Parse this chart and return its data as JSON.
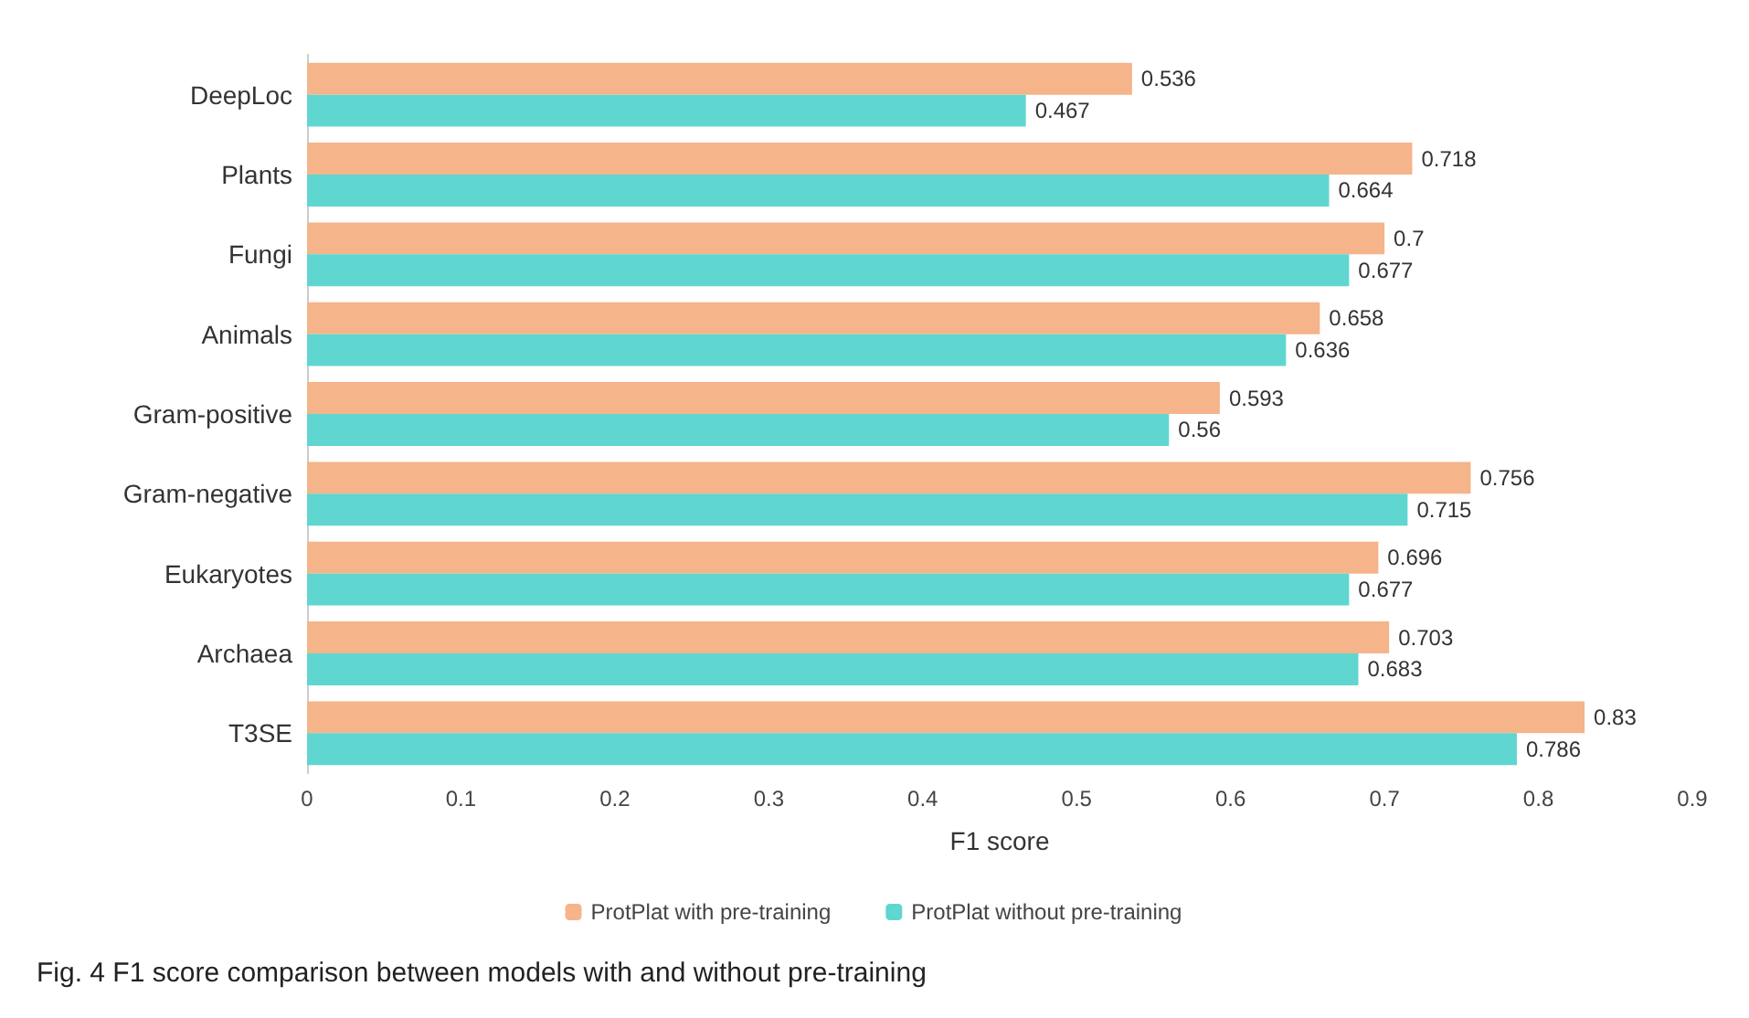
{
  "chart_data": {
    "type": "bar",
    "orientation": "horizontal",
    "xlabel": "F1 score",
    "categories": [
      "DeepLoc",
      "Plants",
      "Fungi",
      "Animals",
      "Gram-positive",
      "Gram-negative",
      "Eukaryotes",
      "Archaea",
      "T3SE"
    ],
    "series": [
      {
        "name": "ProtPlat with pre-training",
        "color": "#f5b48a",
        "values": [
          0.536,
          0.718,
          0.7,
          0.658,
          0.593,
          0.756,
          0.696,
          0.703,
          0.83
        ]
      },
      {
        "name": "ProtPlat without pre-training",
        "color": "#5fd6cf",
        "values": [
          0.467,
          0.664,
          0.677,
          0.636,
          0.56,
          0.715,
          0.677,
          0.683,
          0.786
        ]
      }
    ],
    "xlim": [
      0,
      0.9
    ],
    "xticks": [
      0,
      0.1,
      0.2,
      0.3,
      0.4,
      0.5,
      0.6,
      0.7,
      0.8,
      0.9
    ],
    "data_labels": true,
    "grid": false,
    "legend": "bottom",
    "annotations": [
      "Fig. 4 F1 score comparison between models with and without pre-training"
    ]
  }
}
